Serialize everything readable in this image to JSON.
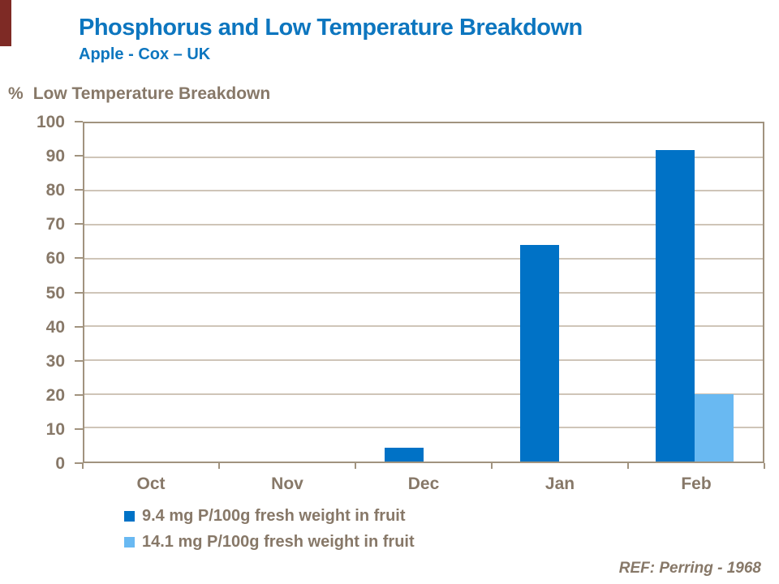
{
  "header": {
    "title": "Phosphorus and Low Temperature Breakdown",
    "subtitle": "Apple - Cox – UK"
  },
  "axis_title": {
    "percent": "%",
    "text": "Low Temperature Breakdown"
  },
  "footer": {
    "ref": "REF: Perring - 1968"
  },
  "colors": {
    "title_blue": "#0d76bf",
    "bar_dark": "#0072c6",
    "bar_light": "#69b9f2",
    "text_brown": "#877868",
    "axis_line": "#a1937f",
    "gridline": "#cfc5b8",
    "accent_red": "#7e2a25"
  },
  "chart_data": {
    "type": "bar",
    "title": "Phosphorus and Low Temperature Breakdown",
    "subtitle": "Apple - Cox – UK",
    "ylabel": "% Low Temperature Breakdown",
    "xlabel": "",
    "categories": [
      "Oct",
      "Nov",
      "Dec",
      "Jan",
      "Feb"
    ],
    "series": [
      {
        "name": "9.4 mg P/100g fresh weight in fruit",
        "color": "#0072c6",
        "values": [
          0,
          0,
          4,
          64,
          92
        ]
      },
      {
        "name": "14.1 mg P/100g fresh weight in fruit",
        "color": "#69b9f2",
        "values": [
          0,
          0,
          0,
          0,
          20
        ]
      }
    ],
    "ylim": [
      0,
      100
    ],
    "yticks": [
      0,
      10,
      20,
      30,
      40,
      50,
      60,
      70,
      80,
      90,
      100
    ],
    "grid": true,
    "legend_position": "bottom-left",
    "annotation": "REF: Perring - 1968"
  }
}
